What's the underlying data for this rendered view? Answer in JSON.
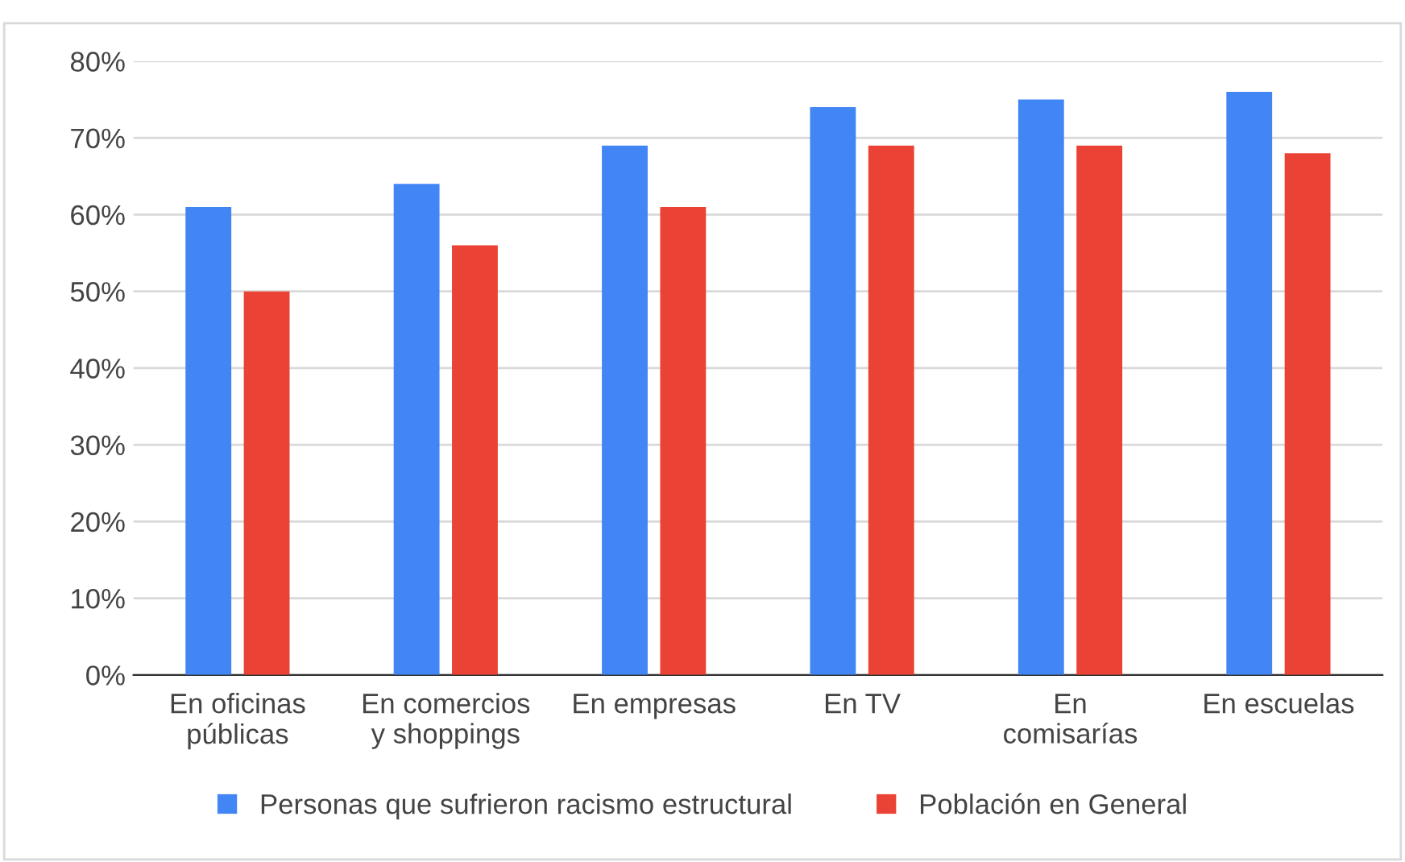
{
  "chart_data": {
    "type": "bar",
    "categories": [
      "En oficinas\npúblicas",
      "En comercios\ny shoppings",
      "En empresas",
      "En TV",
      "En\ncomisarías",
      "En escuelas"
    ],
    "series": [
      {
        "name": "Personas que sufrieron racismo estructural",
        "color": "#4285f4",
        "values": [
          61,
          64,
          69,
          74,
          75,
          76
        ]
      },
      {
        "name": "Población en General",
        "color": "#ea4335",
        "values": [
          50,
          56,
          61,
          69,
          69,
          68
        ]
      }
    ],
    "ylim": [
      0,
      80
    ],
    "yticks": [
      {
        "value": 0,
        "label": "0%"
      },
      {
        "value": 10,
        "label": "10%"
      },
      {
        "value": 20,
        "label": "20%"
      },
      {
        "value": 30,
        "label": "30%"
      },
      {
        "value": 40,
        "label": "40%"
      },
      {
        "value": 50,
        "label": "50%"
      },
      {
        "value": 60,
        "label": "60%"
      },
      {
        "value": 70,
        "label": "70%"
      },
      {
        "value": 80,
        "label": "80%"
      }
    ],
    "grid": "y",
    "legend": "bottom"
  }
}
